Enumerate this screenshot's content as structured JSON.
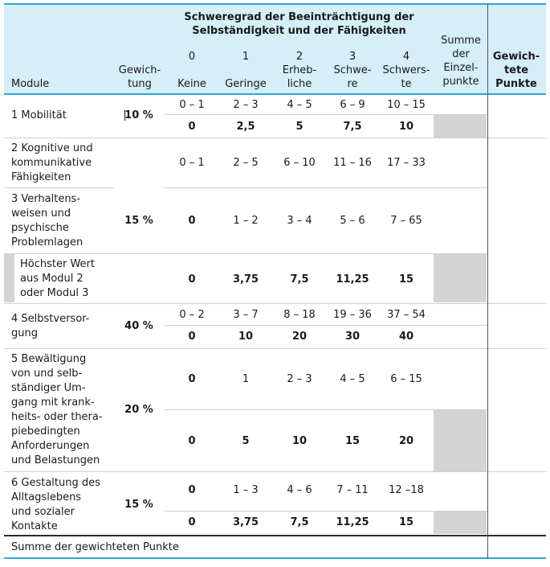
{
  "header": {
    "title": "Schweregrad der Beeinträchtigung der Selbständigkeit und der Fähigkeiten",
    "col_module": "Module",
    "col_weight": "Gewich-\ntung",
    "levels": [
      {
        "num": "0",
        "label": "Keine"
      },
      {
        "num": "1",
        "label": "Geringe"
      },
      {
        "num": "2",
        "label": "Erheb-\nliche"
      },
      {
        "num": "3",
        "label": "Schwe-\nre"
      },
      {
        "num": "4",
        "label": "Schwers-\nte"
      }
    ],
    "col_sum": "Summe\nder\nEinzel-\npunkte",
    "col_weighted": "Gewich-\ntete\nPunkte"
  },
  "modules": {
    "m1": {
      "name": "1 Mobilität",
      "weight": "10 %",
      "ranges": [
        "0 – 1",
        "2 – 3",
        "4 – 5",
        "6 – 9",
        "10 – 15"
      ],
      "points": [
        "0",
        "2,5",
        "5",
        "7,5",
        "10"
      ]
    },
    "m2": {
      "name": "2 Kognitive und\nkommunikative\nFähigkeiten",
      "ranges": [
        "0 – 1",
        "2 – 5",
        "6 – 10",
        "11 – 16",
        "17 – 33"
      ]
    },
    "m3": {
      "name": "3 Verhaltens-\nweisen und\npsychische\nProblemlagen",
      "weight": "15 %",
      "ranges": [
        "0",
        "1 – 2",
        "3 – 4",
        "5 – 6",
        "7 – 65"
      ]
    },
    "m23": {
      "name": "Höchster Wert\naus Modul 2\noder Modul 3",
      "points": [
        "0",
        "3,75",
        "7,5",
        "11,25",
        "15"
      ]
    },
    "m4": {
      "name": "4 Selbstversor-\ngung",
      "weight": "40 %",
      "ranges": [
        "0 – 2",
        "3 – 7",
        "8 – 18",
        "19 – 36",
        "37 – 54"
      ],
      "points": [
        "0",
        "10",
        "20",
        "30",
        "40"
      ]
    },
    "m5": {
      "name": "5 Bewältigung\nvon und selb-\nständiger Um-\ngang mit krank-\nheits- oder thera-\npiebedingten\nAnforderungen\nund Belastungen",
      "weight": "20 %",
      "ranges": [
        "0",
        "1",
        "2 – 3",
        "4 – 5",
        "6 – 15"
      ],
      "points": [
        "0",
        "5",
        "10",
        "15",
        "20"
      ]
    },
    "m6": {
      "name": "6 Gestaltung des\nAlltagslebens\nund sozialer\nKontakte",
      "weight": "15 %",
      "ranges": [
        "0",
        "1 – 3",
        "4 – 6",
        "7 – 11",
        "12 –18"
      ],
      "points": [
        "0",
        "3,75",
        "7,5",
        "11,25",
        "15"
      ]
    }
  },
  "footer": "Summe der gewichteten Punkte"
}
